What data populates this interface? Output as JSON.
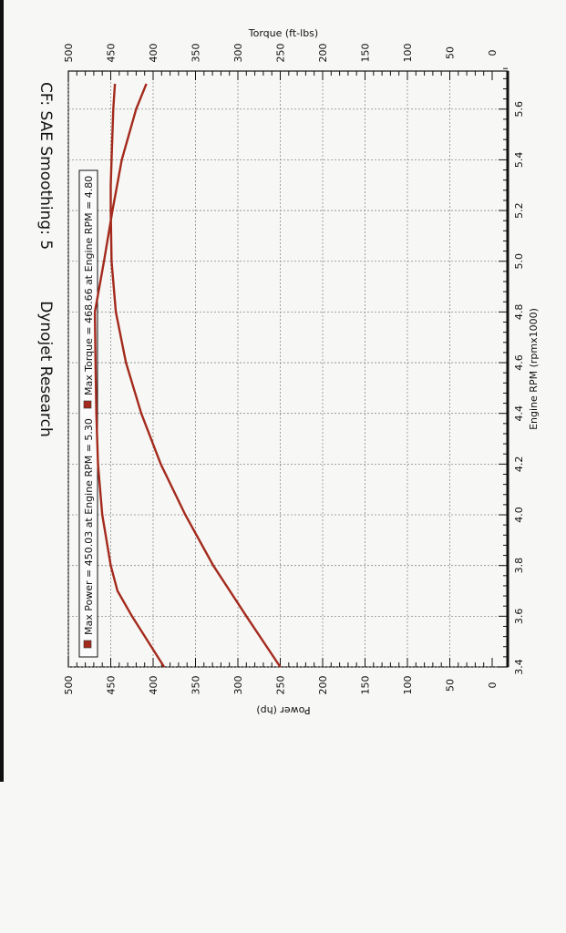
{
  "chart_data": {
    "type": "line",
    "title": "Dynojet Research",
    "subtitle": "CF: SAE Smoothing: 5",
    "xlabel": "Engine RPM (rpmx1000)",
    "ylabel_left": "Power (hp)",
    "ylabel_right": "Torque (ft-lbs)",
    "xlim": [
      3.4,
      5.75
    ],
    "ylim": [
      0,
      500
    ],
    "x_ticks": [
      "3.4",
      "3.6",
      "3.8",
      "4.0",
      "4.2",
      "4.4",
      "4.6",
      "4.8",
      "5.0",
      "5.2",
      "5.4",
      "5.6"
    ],
    "y_ticks": [
      "0",
      "50",
      "100",
      "150",
      "200",
      "250",
      "300",
      "350",
      "400",
      "450",
      "500"
    ],
    "legend": [
      "Max Power = 450.03 at Engine RPM = 5.30",
      "Max Torque = 468.66 at Engine RPM = 4.80"
    ],
    "series": [
      {
        "name": "Power",
        "color": "#a32a1c",
        "x": [
          3.4,
          3.6,
          3.8,
          4.0,
          4.2,
          4.4,
          4.6,
          4.8,
          5.0,
          5.2,
          5.3,
          5.4,
          5.6,
          5.7
        ],
        "y": [
          250,
          290,
          329,
          362,
          391,
          414,
          432,
          444,
          449,
          450,
          450,
          449,
          447,
          445
        ]
      },
      {
        "name": "Torque",
        "color": "#a32a1c",
        "x": [
          3.4,
          3.6,
          3.7,
          3.8,
          4.0,
          4.2,
          4.4,
          4.6,
          4.8,
          5.0,
          5.2,
          5.4,
          5.6,
          5.7
        ],
        "y": [
          387,
          425,
          442,
          450,
          460,
          465,
          467,
          468,
          468.66,
          458,
          448,
          437,
          420,
          408
        ]
      }
    ]
  }
}
